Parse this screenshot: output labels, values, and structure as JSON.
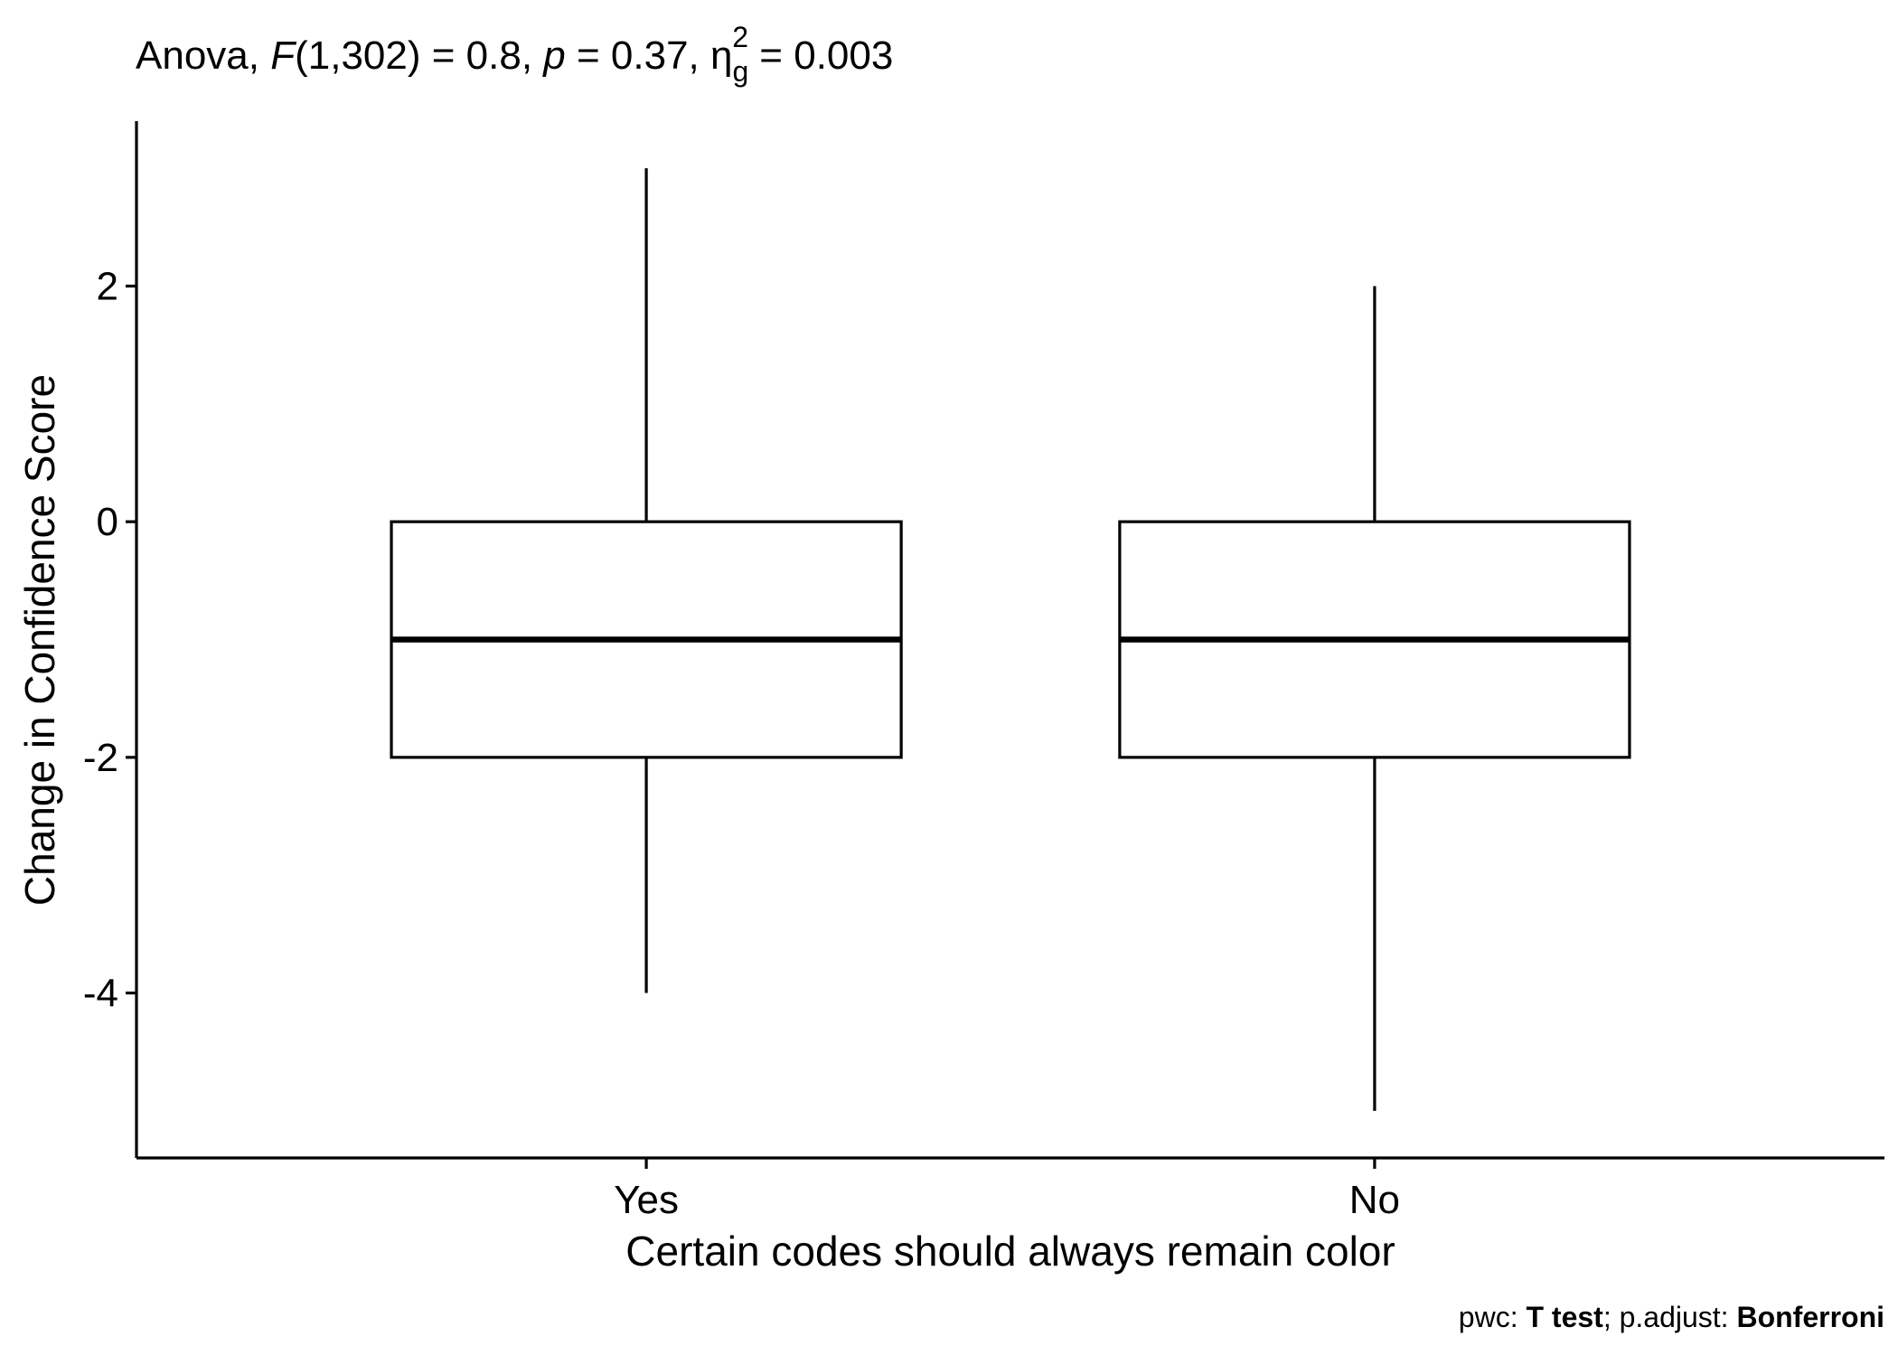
{
  "chart_data": {
    "type": "box",
    "title": {
      "prefix": "Anova, ",
      "f_symbol": "F",
      "f_value": "(1,302) = 0.8, ",
      "p_symbol": "p",
      "p_value": " = 0.37, ",
      "eta_symbol": "η",
      "eta_sub": "g",
      "eta_sup": "2",
      "eta_value": " = 0.003"
    },
    "xlabel": "Certain codes should always remain color",
    "ylabel": "Change in Confidence Score",
    "ylim": [
      -5.4,
      3.4
    ],
    "yticks": [
      -4,
      -2,
      0,
      2
    ],
    "ytick_labels": [
      "-4",
      "-2",
      "0",
      "2"
    ],
    "grid": false,
    "legend": "none",
    "categories": [
      "Yes",
      "No"
    ],
    "boxes": [
      {
        "category": "Yes",
        "min": -4,
        "q1": -2,
        "median": -1,
        "q3": 0,
        "max": 3
      },
      {
        "category": "No",
        "min": -5,
        "q1": -2,
        "median": -1,
        "q3": 0,
        "max": 2
      }
    ],
    "caption": {
      "pwc_label": "pwc: ",
      "pwc_method": "T test",
      "adjust_label": "; p.adjust: ",
      "adjust_method": "Bonferroni"
    }
  }
}
